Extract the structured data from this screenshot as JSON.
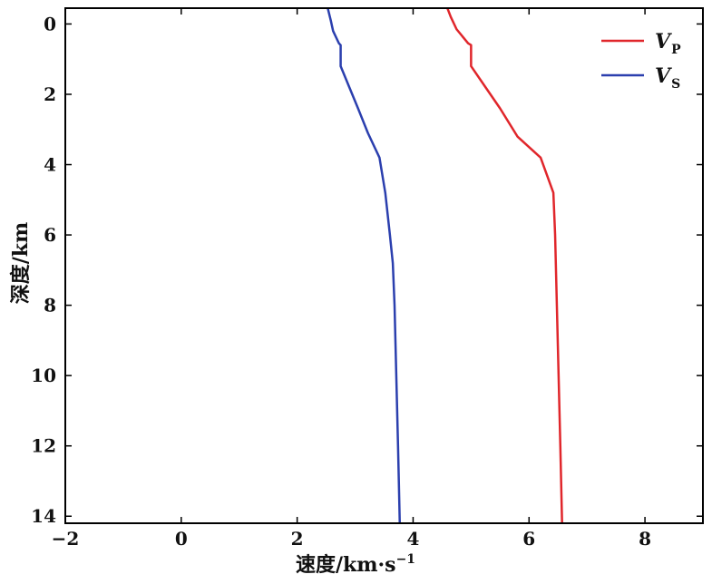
{
  "chart_data": {
    "type": "line",
    "xlabel": "速度/km·s",
    "xlabel_superscript": "−1",
    "ylabel": "深度/km",
    "xlim": [
      -2,
      9
    ],
    "ylim": [
      0,
      14
    ],
    "y_inverted": true,
    "x_ticks": [
      -2,
      0,
      2,
      4,
      6,
      8
    ],
    "x_tick_labels": [
      "−2",
      "0",
      "2",
      "4",
      "6",
      "8"
    ],
    "y_ticks": [
      0,
      2,
      4,
      6,
      8,
      10,
      12,
      14
    ],
    "y_tick_labels": [
      "0",
      "2",
      "4",
      "6",
      "8",
      "10",
      "12",
      "14"
    ],
    "grid": false,
    "legend_position": "top-right",
    "series": [
      {
        "name": "V",
        "name_sub": "P",
        "color": "#e0262b",
        "points": [
          [
            4.58,
            -0.5
          ],
          [
            4.65,
            -0.2
          ],
          [
            4.75,
            0.15
          ],
          [
            4.95,
            0.55
          ],
          [
            5.0,
            0.6
          ],
          [
            5.0,
            1.2
          ],
          [
            5.25,
            1.8
          ],
          [
            5.5,
            2.4
          ],
          [
            5.8,
            3.2
          ],
          [
            6.2,
            3.8
          ],
          [
            6.42,
            4.8
          ],
          [
            6.45,
            6.0
          ],
          [
            6.48,
            8.0
          ],
          [
            6.51,
            10.0
          ],
          [
            6.54,
            12.0
          ],
          [
            6.57,
            14.2
          ]
        ]
      },
      {
        "name": "V",
        "name_sub": "S",
        "color": "#2b3fae",
        "points": [
          [
            2.52,
            -0.5
          ],
          [
            2.58,
            -0.1
          ],
          [
            2.62,
            0.2
          ],
          [
            2.72,
            0.55
          ],
          [
            2.75,
            0.6
          ],
          [
            2.75,
            1.2
          ],
          [
            2.9,
            1.8
          ],
          [
            3.05,
            2.4
          ],
          [
            3.22,
            3.1
          ],
          [
            3.42,
            3.8
          ],
          [
            3.52,
            4.8
          ],
          [
            3.6,
            6.0
          ],
          [
            3.65,
            6.8
          ],
          [
            3.68,
            8.0
          ],
          [
            3.71,
            10.0
          ],
          [
            3.74,
            12.0
          ],
          [
            3.77,
            14.2
          ]
        ]
      }
    ]
  }
}
